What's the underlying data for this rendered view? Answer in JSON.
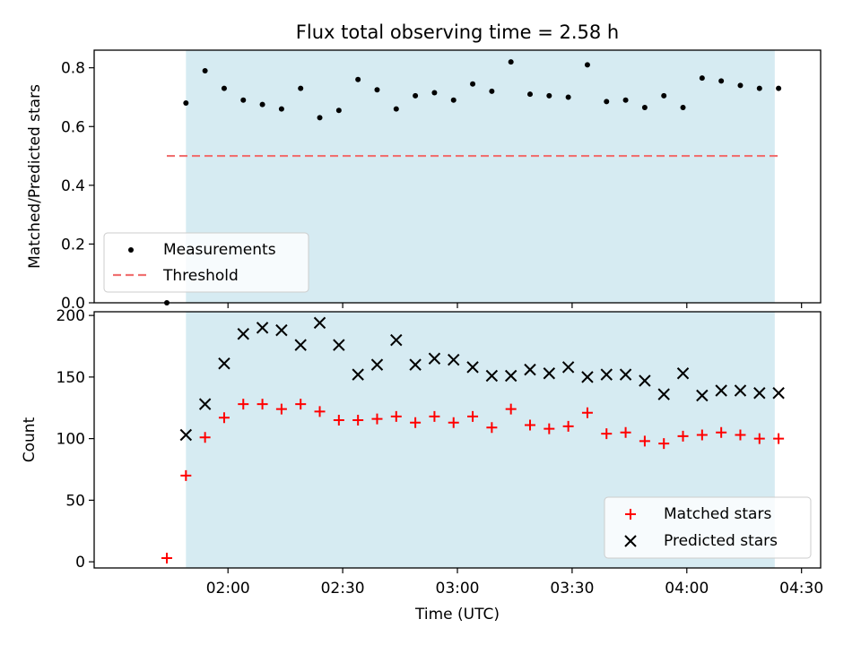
{
  "chart_data": [
    {
      "type": "scatter",
      "title": "Flux total observing time = 2.58 h",
      "xlabel": "",
      "ylabel": "Matched/Predicted stars",
      "ylim": [
        0,
        0.86
      ],
      "yticks": [
        "0.0",
        "0.2",
        "0.4",
        "0.6",
        "0.8"
      ],
      "ytick_values": [
        0,
        0.2,
        0.4,
        0.6,
        0.8
      ],
      "xlim_minutes": [
        85,
        275
      ],
      "shaded_span_minutes": [
        109,
        263
      ],
      "shade_color": "#add8e6",
      "series": [
        {
          "name": "Measurements",
          "color": "#000000",
          "marker": "dot",
          "x_minutes": [
            104,
            109,
            114,
            119,
            124,
            129,
            134,
            139,
            144,
            149,
            154,
            159,
            164,
            169,
            174,
            179,
            184,
            189,
            194,
            199,
            204,
            209,
            214,
            219,
            224,
            229,
            234,
            239,
            244,
            249,
            254,
            259,
            264
          ],
          "values": [
            0.0,
            0.68,
            0.79,
            0.73,
            0.69,
            0.675,
            0.66,
            0.73,
            0.63,
            0.655,
            0.76,
            0.725,
            0.66,
            0.705,
            0.715,
            0.69,
            0.745,
            0.72,
            0.82,
            0.71,
            0.705,
            0.7,
            0.81,
            0.685,
            0.69,
            0.665,
            0.705,
            0.665,
            0.765,
            0.755,
            0.74,
            0.73,
            0.73
          ]
        },
        {
          "name": "Threshold",
          "color": "#f07070",
          "marker": "dashed-line",
          "x_range_minutes": [
            104,
            264
          ],
          "value": 0.5
        }
      ],
      "legend": {
        "placement": "lower-left",
        "entries": [
          "Measurements",
          "Threshold"
        ]
      }
    },
    {
      "type": "scatter",
      "title": "",
      "xlabel": "Time (UTC)",
      "ylabel": "Count",
      "ylim": [
        -5,
        203
      ],
      "yticks": [
        "0",
        "50",
        "100",
        "150",
        "200"
      ],
      "ytick_values": [
        0,
        50,
        100,
        150,
        200
      ],
      "xticks": [
        "02:00",
        "02:30",
        "03:00",
        "03:30",
        "04:00",
        "04:30"
      ],
      "xtick_minutes": [
        120,
        150,
        180,
        210,
        240,
        270
      ],
      "xlim_minutes": [
        85,
        275
      ],
      "shaded_span_minutes": [
        109,
        263
      ],
      "shade_color": "#add8e6",
      "series": [
        {
          "name": "Matched stars",
          "color": "#ff0000",
          "marker": "plus",
          "x_minutes": [
            104,
            109,
            114,
            119,
            124,
            129,
            134,
            139,
            144,
            149,
            154,
            159,
            164,
            169,
            174,
            179,
            184,
            189,
            194,
            199,
            204,
            209,
            214,
            219,
            224,
            229,
            234,
            239,
            244,
            249,
            254,
            259,
            264
          ],
          "values": [
            3,
            70,
            101,
            117,
            128,
            128,
            124,
            128,
            122,
            115,
            115,
            116,
            118,
            113,
            118,
            113,
            118,
            109,
            124,
            111,
            108,
            110,
            121,
            104,
            105,
            98,
            96,
            102,
            103,
            105,
            103,
            100,
            100
          ]
        },
        {
          "name": "Predicted stars",
          "color": "#000000",
          "marker": "x",
          "x_minutes": [
            109,
            114,
            119,
            124,
            129,
            134,
            139,
            144,
            149,
            154,
            159,
            164,
            169,
            174,
            179,
            184,
            189,
            194,
            199,
            204,
            209,
            214,
            219,
            224,
            229,
            234,
            239,
            244,
            249,
            254,
            259,
            264
          ],
          "values": [
            103,
            128,
            161,
            185,
            190,
            188,
            176,
            194,
            176,
            152,
            160,
            180,
            160,
            165,
            164,
            158,
            151,
            151,
            156,
            153,
            158,
            150,
            152,
            152,
            147,
            136,
            153,
            135,
            139,
            139,
            137,
            137
          ]
        }
      ],
      "legend": {
        "placement": "lower-right",
        "entries": [
          "Matched stars",
          "Predicted stars"
        ]
      }
    }
  ]
}
